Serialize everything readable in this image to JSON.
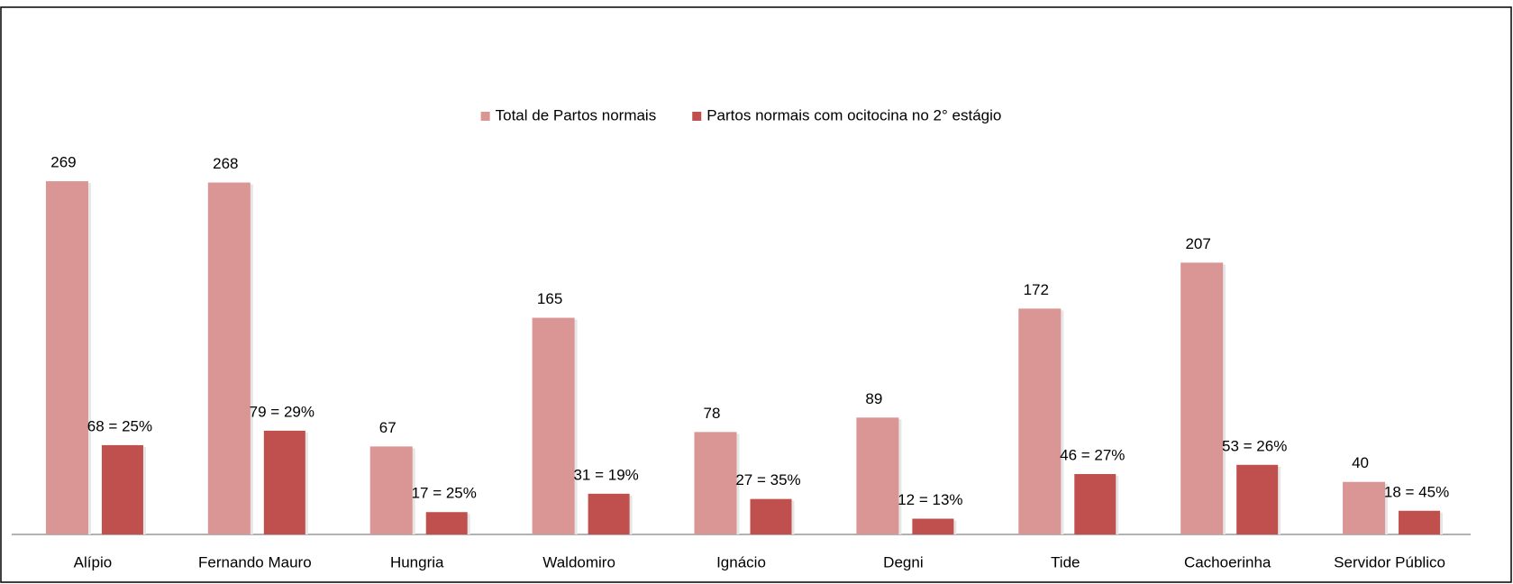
{
  "chart_data": {
    "type": "bar",
    "categories": [
      "Alípio",
      "Fernando Mauro",
      "Hungria",
      "Waldomiro",
      "Ignácio",
      "Degni",
      "Tide",
      "Cachoerinha",
      "Servidor Público"
    ],
    "series": [
      {
        "name": "Total de Partos normais",
        "color": "#d99694",
        "values": [
          269,
          268,
          67,
          165,
          78,
          89,
          172,
          207,
          40
        ]
      },
      {
        "name": "Partos normais com ocitocina no 2° estágio",
        "color": "#c0504d",
        "values": [
          68,
          79,
          17,
          31,
          27,
          12,
          46,
          53,
          18
        ],
        "value_labels": [
          "68 = 25%",
          "79 = 29%",
          "17 = 25%",
          "31 = 19%",
          "27 = 35%",
          "12 = 13%",
          "46 = 27%",
          "53 = 26%",
          "18 = 45%"
        ]
      }
    ],
    "legend": "top"
  }
}
